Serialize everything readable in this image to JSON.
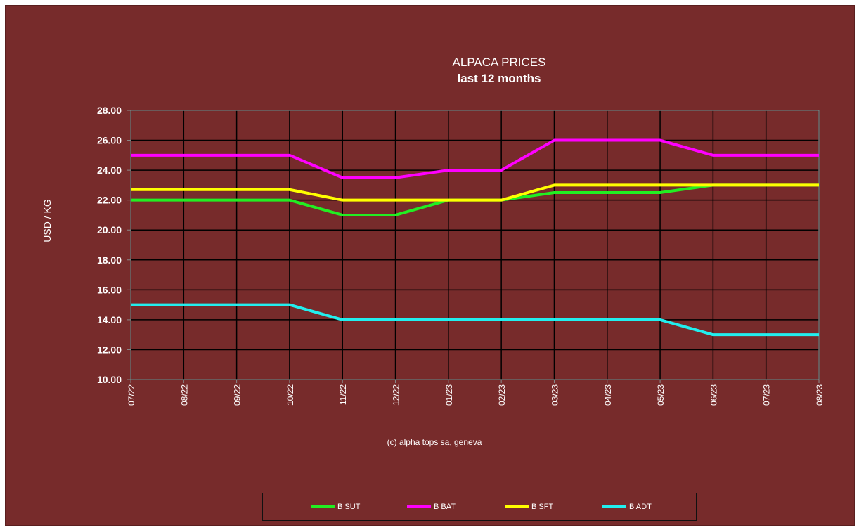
{
  "chart_data": {
    "type": "line",
    "title": "ALPACA PRICES",
    "subtitle": "last 12 months",
    "xlabel": "",
    "ylabel": "USD / KG",
    "credit": "(c) alpha tops sa, geneva",
    "ylim": [
      10,
      28
    ],
    "yticks": [
      "10.00",
      "12.00",
      "14.00",
      "16.00",
      "18.00",
      "20.00",
      "22.00",
      "24.00",
      "26.00",
      "28.00"
    ],
    "categories": [
      "07/22",
      "08/22",
      "09/22",
      "10/22",
      "11/22",
      "12/22",
      "01/23",
      "02/23",
      "03/23",
      "04/23",
      "05/23",
      "06/23",
      "07/23",
      "08/23"
    ],
    "grid": true,
    "legend_position": "bottom",
    "series": [
      {
        "name": "B SUT",
        "color": "#22ee22",
        "values": [
          22,
          22,
          22,
          22,
          21,
          21,
          22,
          22,
          22.5,
          22.5,
          22.5,
          23,
          23,
          23
        ]
      },
      {
        "name": "B BAT",
        "color": "#ff00ff",
        "values": [
          25,
          25,
          25,
          25,
          23.5,
          23.5,
          24,
          24,
          26,
          26,
          26,
          25,
          25,
          25
        ]
      },
      {
        "name": "B SFT",
        "color": "#ffff00",
        "values": [
          22.7,
          22.7,
          22.7,
          22.7,
          22,
          22,
          22,
          22,
          23,
          23,
          23,
          23,
          23,
          23
        ]
      },
      {
        "name": "B ADT",
        "color": "#22eeee",
        "values": [
          15,
          15,
          15,
          15,
          14,
          14,
          14,
          14,
          14,
          14,
          14,
          13,
          13,
          13
        ]
      }
    ]
  }
}
